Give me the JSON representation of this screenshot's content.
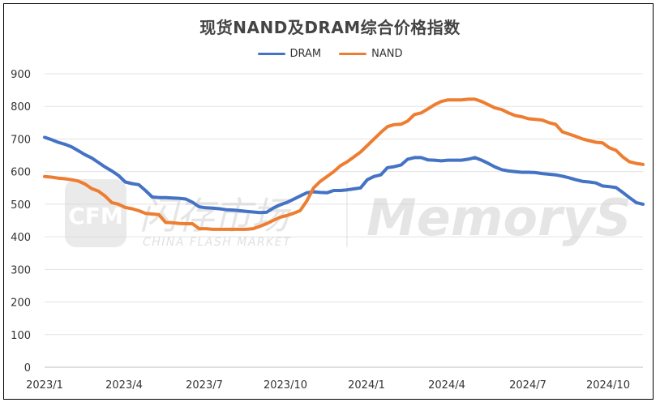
{
  "chart_data": {
    "type": "line",
    "title": "现货NAND及DRAM综合价格指数",
    "ylim": [
      0,
      900
    ],
    "yticks": [
      0,
      100,
      200,
      300,
      400,
      500,
      600,
      700,
      800,
      900
    ],
    "x_tick_labels": [
      "2023/1",
      "2023/4",
      "2023/7",
      "2023/10",
      "2024/1",
      "2024/4",
      "2024/7",
      "2024/10"
    ],
    "x_period": "weekly, 2023-01 to 2024-11",
    "grid": true,
    "legend_position": "top-center",
    "series": [
      {
        "name": "DRAM",
        "color": "#4472C4",
        "values": [
          705,
          698,
          690,
          684,
          676,
          664,
          652,
          642,
          628,
          614,
          602,
          588,
          568,
          563,
          560,
          542,
          522,
          520,
          520,
          519,
          518,
          516,
          506,
          492,
          489,
          488,
          486,
          483,
          482,
          480,
          478,
          476,
          474,
          475,
          488,
          498,
          505,
          515,
          525,
          535,
          538,
          536,
          535,
          542,
          542,
          544,
          547,
          550,
          575,
          585,
          590,
          612,
          615,
          620,
          638,
          643,
          643,
          636,
          635,
          633,
          635,
          635,
          635,
          638,
          643,
          635,
          625,
          614,
          606,
          602,
          600,
          598,
          598,
          597,
          594,
          592,
          590,
          586,
          581,
          575,
          570,
          568,
          565,
          556,
          554,
          551,
          536,
          520,
          505,
          500
        ]
      },
      {
        "name": "NAND",
        "color": "#ED7D31",
        "values": [
          585,
          583,
          580,
          578,
          575,
          571,
          562,
          548,
          540,
          525,
          505,
          500,
          490,
          486,
          480,
          472,
          470,
          468,
          444,
          443,
          441,
          440,
          440,
          425,
          425,
          423,
          423,
          423,
          423,
          423,
          423,
          425,
          432,
          440,
          450,
          460,
          465,
          472,
          480,
          510,
          550,
          570,
          585,
          600,
          618,
          630,
          645,
          660,
          680,
          700,
          720,
          738,
          744,
          745,
          755,
          775,
          780,
          792,
          805,
          815,
          820,
          820,
          820,
          822,
          822,
          815,
          805,
          795,
          790,
          780,
          772,
          768,
          762,
          760,
          758,
          750,
          745,
          722,
          715,
          708,
          700,
          695,
          690,
          688,
          673,
          665,
          645,
          630,
          625,
          622
        ]
      }
    ]
  },
  "watermark": {
    "logo_text": "CFM",
    "cn_text": "闪存市场",
    "en_text": "CHINA FLASH MARKET",
    "brand_text": "MemoryS"
  }
}
